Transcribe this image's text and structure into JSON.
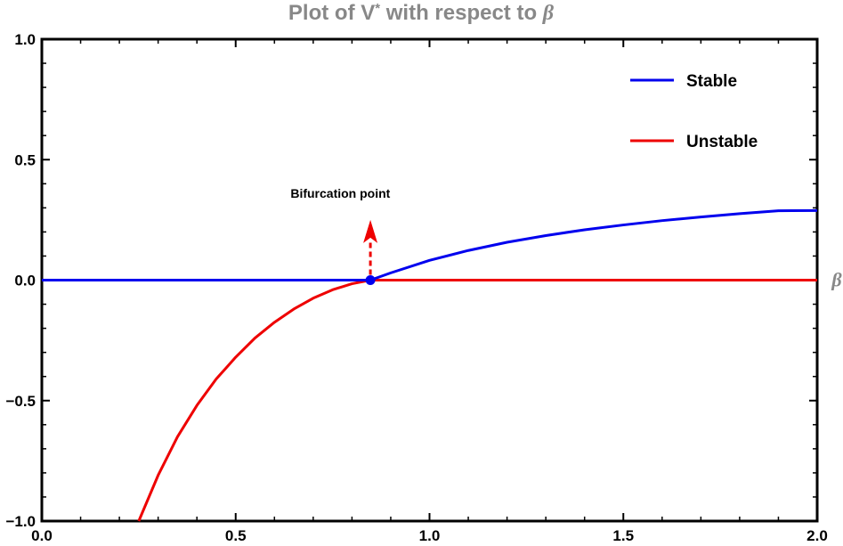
{
  "chart_data": {
    "type": "line",
    "title_main": "Plot of V",
    "title_sup": "*",
    "title_rest": " with respect to ",
    "title_symbol": "β",
    "xlabel": "β",
    "ylabel": "",
    "xlim": [
      0.0,
      2.0
    ],
    "ylim": [
      -1.0,
      1.0
    ],
    "x_ticks": [
      "0.0",
      "0.5",
      "1.0",
      "1.5",
      "2.0"
    ],
    "y_ticks": [
      "1.0",
      "0.5",
      "0.0",
      "−0.5",
      "−1.0"
    ],
    "x_tick_values": [
      0.0,
      0.5,
      1.0,
      1.5,
      2.0
    ],
    "y_tick_values": [
      1.0,
      0.5,
      0.0,
      -0.5,
      -1.0
    ],
    "grid": false,
    "legend_position": "top-right",
    "series": [
      {
        "name": "Stable",
        "color": "#0000ee",
        "segments": [
          {
            "x": [
              0.0,
              0.8475
            ],
            "y": [
              0.0,
              0.0
            ]
          },
          {
            "x": [
              0.8475,
              0.9,
              1.0,
              1.1,
              1.2,
              1.3,
              1.4,
              1.5,
              1.6,
              1.7,
              1.8,
              1.9,
              2.0
            ],
            "y": [
              0.0,
              0.03,
              0.082,
              0.123,
              0.157,
              0.185,
              0.209,
              0.229,
              0.247,
              0.262,
              0.276,
              0.288,
              0.289
            ]
          }
        ]
      },
      {
        "name": "Unstable",
        "color": "#ee0000",
        "segments": [
          {
            "x": [
              0.25,
              0.3,
              0.35,
              0.4,
              0.45,
              0.5,
              0.55,
              0.6,
              0.65,
              0.7,
              0.75,
              0.8,
              0.8475
            ],
            "y": [
              -1.0,
              -0.81,
              -0.65,
              -0.52,
              -0.41,
              -0.32,
              -0.24,
              -0.175,
              -0.12,
              -0.075,
              -0.04,
              -0.015,
              0.0
            ]
          },
          {
            "x": [
              0.8475,
              2.0
            ],
            "y": [
              0.0,
              0.0
            ]
          }
        ]
      }
    ],
    "bifurcation_point": {
      "x": 0.8475,
      "y": 0.0,
      "color": "#0000ee"
    },
    "annotation": {
      "text": "Bifurcation point",
      "arrow_from": {
        "x": 0.8475,
        "y": 0.0
      },
      "arrow_to": {
        "x": 0.8475,
        "y": 0.25
      },
      "label_at": {
        "x": 0.77,
        "y": 0.36
      },
      "color": "#ee0000"
    }
  }
}
